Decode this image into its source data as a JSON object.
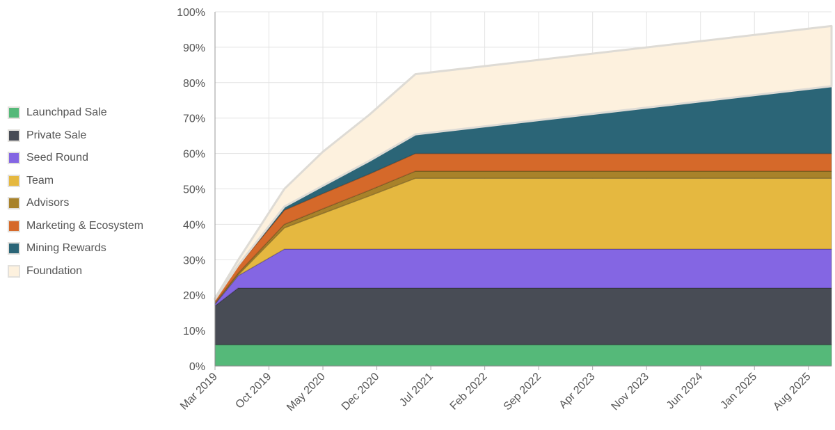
{
  "chart_data": {
    "type": "area",
    "stacked": true,
    "x_ticks": [
      "Mar 2019",
      "Oct 2019",
      "May 2020",
      "Dec 2020",
      "Jul 2021",
      "Feb 2022",
      "Sep 2022",
      "Apr 2023",
      "Nov 2023",
      "Jun 2024",
      "Jan 2025",
      "Aug 2025"
    ],
    "y_ticks": [
      "0%",
      "10%",
      "20%",
      "30%",
      "40%",
      "50%",
      "60%",
      "70%",
      "80%",
      "90%",
      "100%"
    ],
    "ylim": [
      0,
      100
    ],
    "xlim": [
      "2019-03",
      "2025-11"
    ],
    "grid": true,
    "legend_position": "left",
    "x": [
      "2019-03",
      "2019-06",
      "2019-12",
      "2020-05",
      "2020-11",
      "2021-05",
      "2025-11"
    ],
    "series": [
      {
        "name": "Launchpad Sale",
        "color": "#55b979",
        "values": [
          6,
          6,
          6,
          6,
          6,
          6,
          6
        ]
      },
      {
        "name": "Private Sale",
        "color": "#484c55",
        "values": [
          11,
          16,
          16,
          16,
          16,
          16,
          16
        ]
      },
      {
        "name": "Seed Round",
        "color": "#8466e3",
        "values": [
          0.5,
          3.5,
          11,
          11,
          11,
          11,
          11
        ]
      },
      {
        "name": "Team",
        "color": "#e5b840",
        "values": [
          0,
          0.2,
          6,
          10.1,
          15,
          20,
          20
        ]
      },
      {
        "name": "Advisors",
        "color": "#a8822a",
        "values": [
          0.3,
          0.5,
          1,
          1.3,
          1.6,
          2,
          2
        ]
      },
      {
        "name": "Marketing & Ecosystem",
        "color": "#d5692a",
        "values": [
          1,
          2,
          4,
          4.3,
          4.6,
          5,
          5
        ]
      },
      {
        "name": "Mining Rewards",
        "color": "#2b6577",
        "values": [
          0,
          0.2,
          1,
          2.2,
          3.7,
          5.4,
          19
        ]
      },
      {
        "name": "Foundation",
        "color": "#fdf1de",
        "values": [
          0.3,
          1.5,
          5,
          9.6,
          13,
          17,
          17
        ]
      }
    ]
  }
}
